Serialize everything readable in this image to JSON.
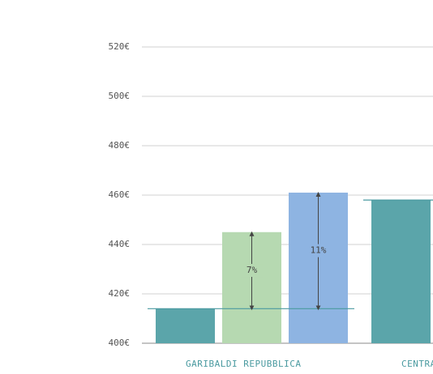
{
  "chart_data": {
    "type": "bar",
    "categories": [
      "GARIBALDI REPUBBLICA",
      "CENTRA"
    ],
    "series": [
      {
        "color": "#5ba5aa",
        "values": [
          414,
          458
        ]
      },
      {
        "color": "#b6d9b1",
        "values": [
          445,
          null
        ]
      },
      {
        "color": "#8eb4e2",
        "values": [
          461,
          null
        ]
      }
    ],
    "annotations": [
      "7%",
      "11%"
    ],
    "ylim": [
      400,
      520
    ],
    "yticks": [
      {
        "value": 400,
        "label": "400€"
      },
      {
        "value": 420,
        "label": "420€"
      },
      {
        "value": 440,
        "label": "440€"
      },
      {
        "value": 460,
        "label": "460€"
      },
      {
        "value": 480,
        "label": "480€"
      },
      {
        "value": 500,
        "label": "500€"
      },
      {
        "value": 520,
        "label": "520€"
      }
    ],
    "grid": true
  }
}
